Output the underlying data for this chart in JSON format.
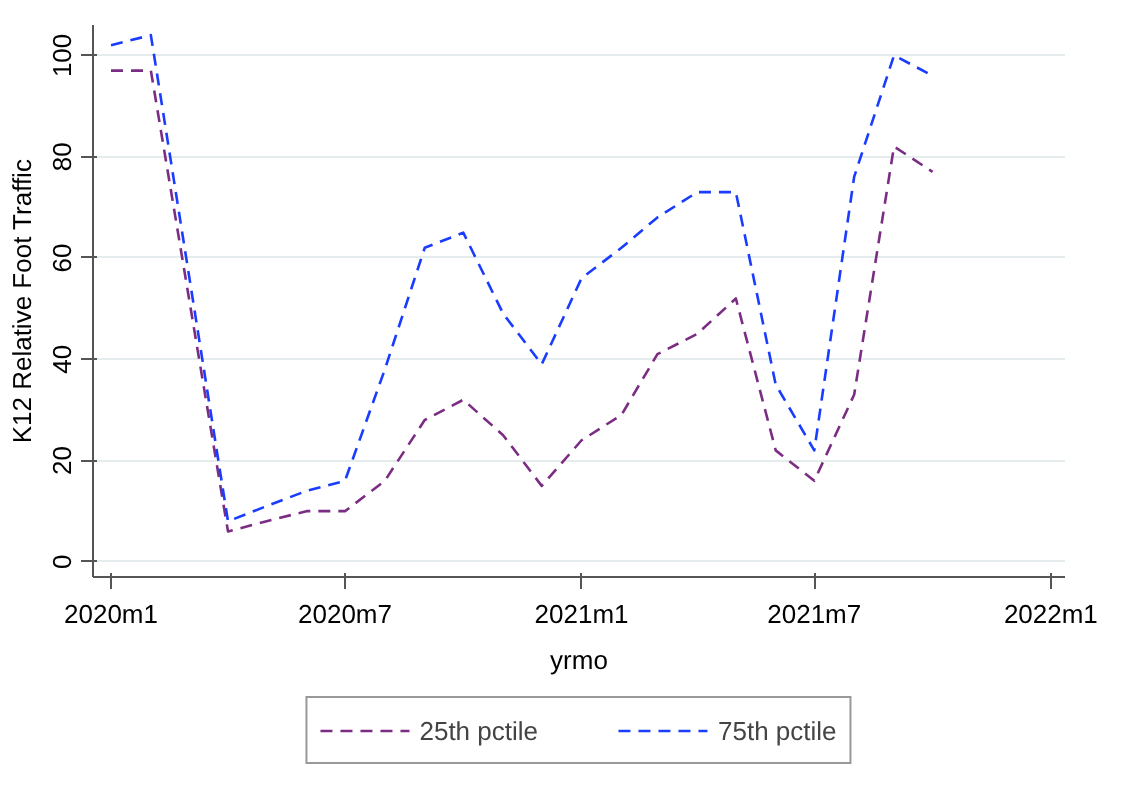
{
  "chart_data": {
    "type": "line",
    "xlabel": "yrmo",
    "ylabel": "K12 Relative Foot Traffic",
    "xlim": [
      "2019-12-18",
      "2022-01-12"
    ],
    "ylim": [
      -3,
      106
    ],
    "xticks": [
      {
        "value": "2020-01",
        "label": "2020m1"
      },
      {
        "value": "2020-07",
        "label": "2020m7"
      },
      {
        "value": "2021-01",
        "label": "2021m1"
      },
      {
        "value": "2021-07",
        "label": "2021m7"
      },
      {
        "value": "2022-01",
        "label": "2022m1"
      }
    ],
    "yticks": [
      0,
      20,
      40,
      60,
      80,
      100
    ],
    "grid": "y",
    "legend": "bottom",
    "line_style": "dashed",
    "marker": "none",
    "series": [
      {
        "name": "25th pctile",
        "color": "#7b2d83",
        "x": [
          "2020-01",
          "2020-02",
          "2020-04",
          "2020-05",
          "2020-06",
          "2020-07",
          "2020-08",
          "2020-09",
          "2020-10",
          "2020-11",
          "2020-12",
          "2021-01",
          "2021-02",
          "2021-03",
          "2021-04",
          "2021-05",
          "2021-06",
          "2021-07",
          "2021-08",
          "2021-09",
          "2021-10"
        ],
        "values": [
          97,
          97,
          6,
          8,
          10,
          10,
          16,
          28,
          32,
          25,
          15,
          24,
          29,
          41,
          45,
          52,
          22,
          16,
          33,
          82,
          77
        ]
      },
      {
        "name": "75th pctile",
        "color": "#1a3cff",
        "x": [
          "2020-01",
          "2020-02",
          "2020-04",
          "2020-05",
          "2020-06",
          "2020-07",
          "2020-08",
          "2020-09",
          "2020-10",
          "2020-11",
          "2020-12",
          "2021-01",
          "2021-02",
          "2021-03",
          "2021-04",
          "2021-05",
          "2021-06",
          "2021-07",
          "2021-08",
          "2021-09",
          "2021-10"
        ],
        "values": [
          102,
          104,
          8,
          11,
          14,
          16,
          38,
          62,
          65,
          49,
          39,
          56,
          62,
          68,
          73,
          73,
          35,
          22,
          76,
          100,
          96
        ]
      }
    ]
  }
}
